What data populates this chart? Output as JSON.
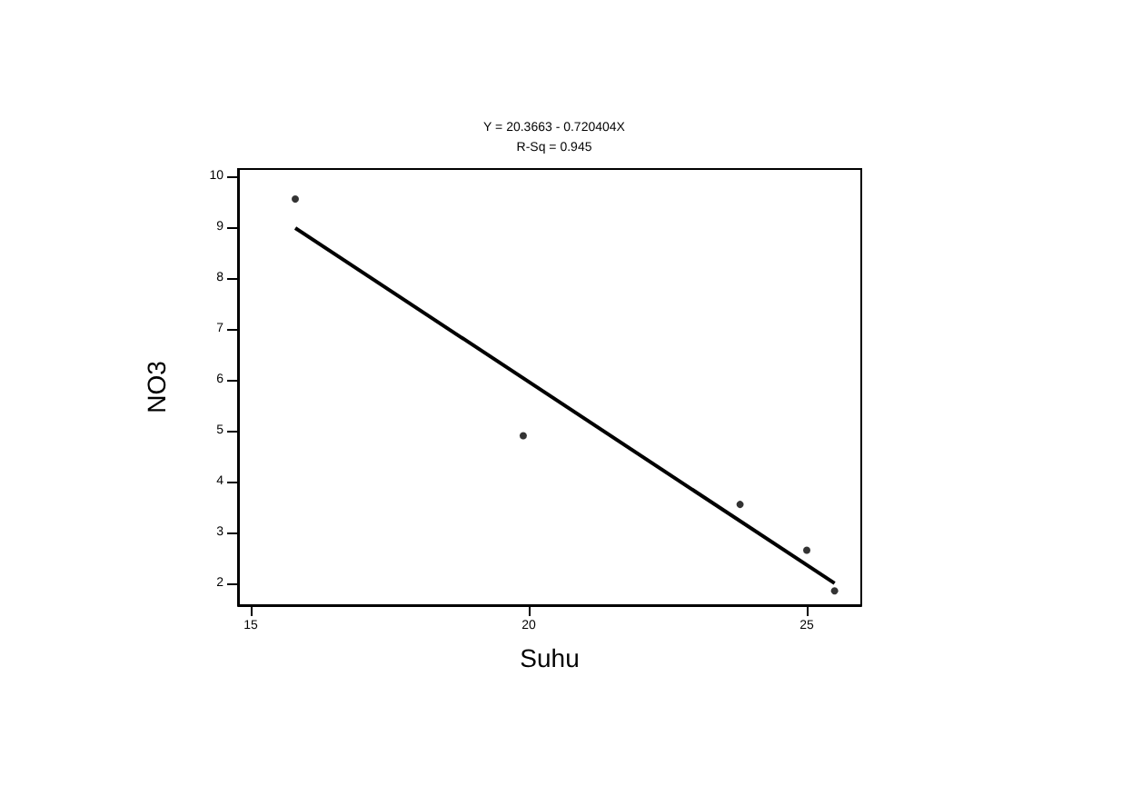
{
  "chart_data": {
    "type": "scatter",
    "title": "Y = 20.3663 - 0.720404X",
    "subtitle": "R-Sq = 0.945",
    "xlabel": "Suhu",
    "ylabel": "NO3",
    "series": [
      {
        "color": "#000000",
        "values": [
          9.55,
          4.9,
          3.55,
          2.65,
          1.85
        ],
        "x": [
          15.8,
          19.9,
          23.8,
          25.0,
          25.5
        ]
      },
      {
        "type": "line",
        "marker": "none",
        "color": "#000000",
        "values": [
          8.98,
          2.0
        ],
        "x": [
          15.8,
          25.5
        ]
      }
    ],
    "xlim": [
      14.77,
      25.98
    ],
    "ylim": [
      1.57,
      10.14
    ],
    "xticks": [
      15,
      20,
      25
    ],
    "yticks": [
      2,
      3,
      4,
      5,
      6,
      7,
      8,
      9,
      10
    ],
    "grid": false,
    "marker": "circle"
  }
}
